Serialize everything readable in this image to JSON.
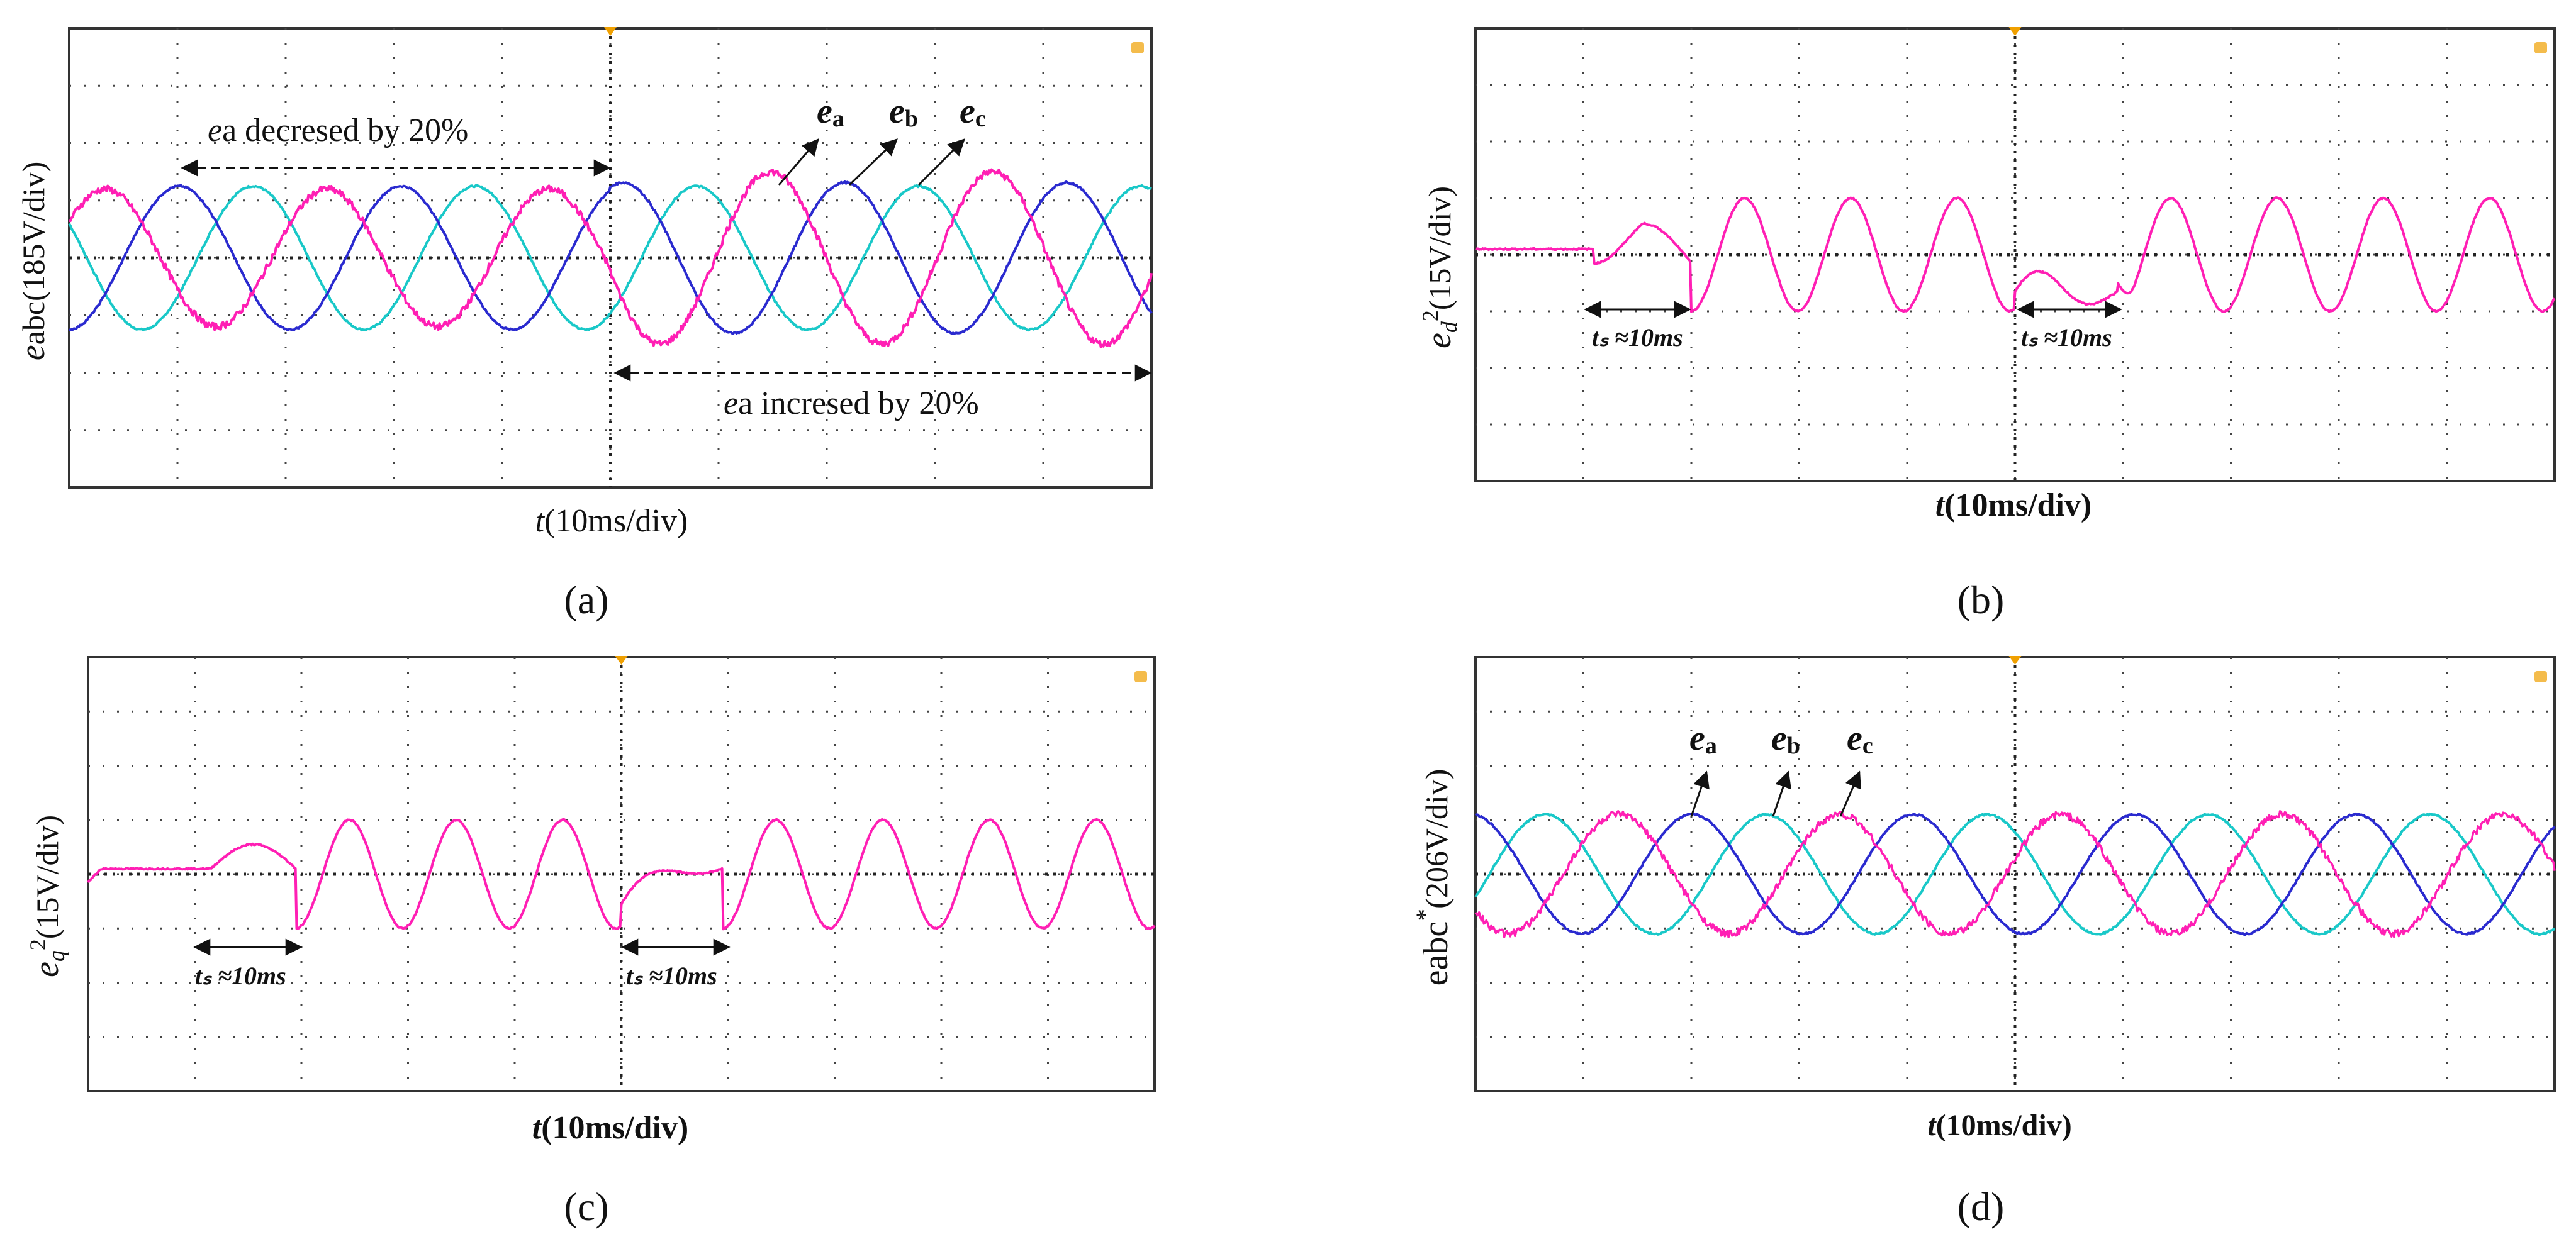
{
  "colors": {
    "ea": "#ff1fb4",
    "eb": "#2a2acf",
    "ec": "#19c8c8",
    "grid": "#444444",
    "arrow": "#111111",
    "marker": "#f0a000"
  },
  "panels": {
    "a": {
      "caption": "(a)",
      "ylabel_main": "e",
      "ylabel_rest": "abc(185V/div)",
      "xlabel_main": "t",
      "xlabel_rest": "(10ms/div)",
      "top_annotation_italic": "e",
      "top_annotation_rest": "a decresed by 20%",
      "bottom_annotation_italic": "e",
      "bottom_annotation_rest": "a incresed by 20%",
      "labels": [
        {
          "italic": "e",
          "sub": "a"
        },
        {
          "italic": "e",
          "sub": "b"
        },
        {
          "italic": "e",
          "sub": "c"
        }
      ]
    },
    "b": {
      "caption": "(b)",
      "ylabel_main": "e",
      "ylabel_sub": "d",
      "ylabel_sup": "2",
      "ylabel_rest": "(15V/div)",
      "xlabel_main": "t",
      "xlabel_rest": "(10ms/div)",
      "settle_1": "tₛ ≈10ms",
      "settle_2": "tₛ ≈10ms"
    },
    "c": {
      "caption": "(c)",
      "ylabel_main": "e",
      "ylabel_sub": "q",
      "ylabel_sup": "2",
      "ylabel_rest": "(15V/div)",
      "xlabel_main": "t",
      "xlabel_rest": "(10ms/div)",
      "settle_1": "tₛ ≈10ms",
      "settle_2": "tₛ ≈10ms"
    },
    "d": {
      "caption": "(d)",
      "ylabel_main": "eabc",
      "ylabel_sup": "*",
      "ylabel_rest": "(206V/div)",
      "xlabel_main": "t",
      "xlabel_rest": "(10ms/div)",
      "labels": [
        {
          "italic": "e",
          "sub": "a"
        },
        {
          "italic": "e",
          "sub": "b"
        },
        {
          "italic": "e",
          "sub": "c"
        }
      ]
    }
  },
  "chart_data": [
    {
      "type": "line",
      "panel": "a",
      "x_unit": "div (10ms/div)",
      "y_unit": "div (185V/div)",
      "xlim": [
        0,
        10
      ],
      "ylim": [
        -4,
        4
      ],
      "grid": true,
      "event_at_div": 5,
      "series": [
        {
          "name": "ea",
          "amplitude_div_before": 1.2,
          "amplitude_div_after": 1.5
        },
        {
          "name": "eb",
          "amplitude_div": 1.25
        },
        {
          "name": "ec",
          "amplitude_div": 1.25
        }
      ]
    },
    {
      "type": "line",
      "panel": "b",
      "x_unit": "div (10ms/div)",
      "y_unit": "div (15V/div)",
      "xlim": [
        0,
        10
      ],
      "ylim": [
        -4,
        4
      ],
      "grid": true,
      "event_at_div": 5,
      "series": [
        {
          "name": "ed2",
          "steady_offset_div": 0.1,
          "oscillation_amplitude_div": 1.0,
          "settling_time_ms": 10
        }
      ]
    },
    {
      "type": "line",
      "panel": "c",
      "x_unit": "div (10ms/div)",
      "y_unit": "div (15V/div)",
      "xlim": [
        0,
        10
      ],
      "ylim": [
        -4,
        4
      ],
      "grid": true,
      "event_at_div": 5,
      "series": [
        {
          "name": "eq2",
          "steady_offset_div": 0.1,
          "oscillation_amplitude_div": 1.0,
          "settling_time_ms": 10
        }
      ]
    },
    {
      "type": "line",
      "panel": "d",
      "x_unit": "div (10ms/div)",
      "y_unit": "div (206V/div)",
      "xlim": [
        0,
        10
      ],
      "ylim": [
        -4,
        4
      ],
      "grid": true,
      "series": [
        {
          "name": "ea",
          "amplitude_div": 1.1
        },
        {
          "name": "eb",
          "amplitude_div": 1.1
        },
        {
          "name": "ec",
          "amplitude_div": 1.1
        }
      ]
    }
  ]
}
